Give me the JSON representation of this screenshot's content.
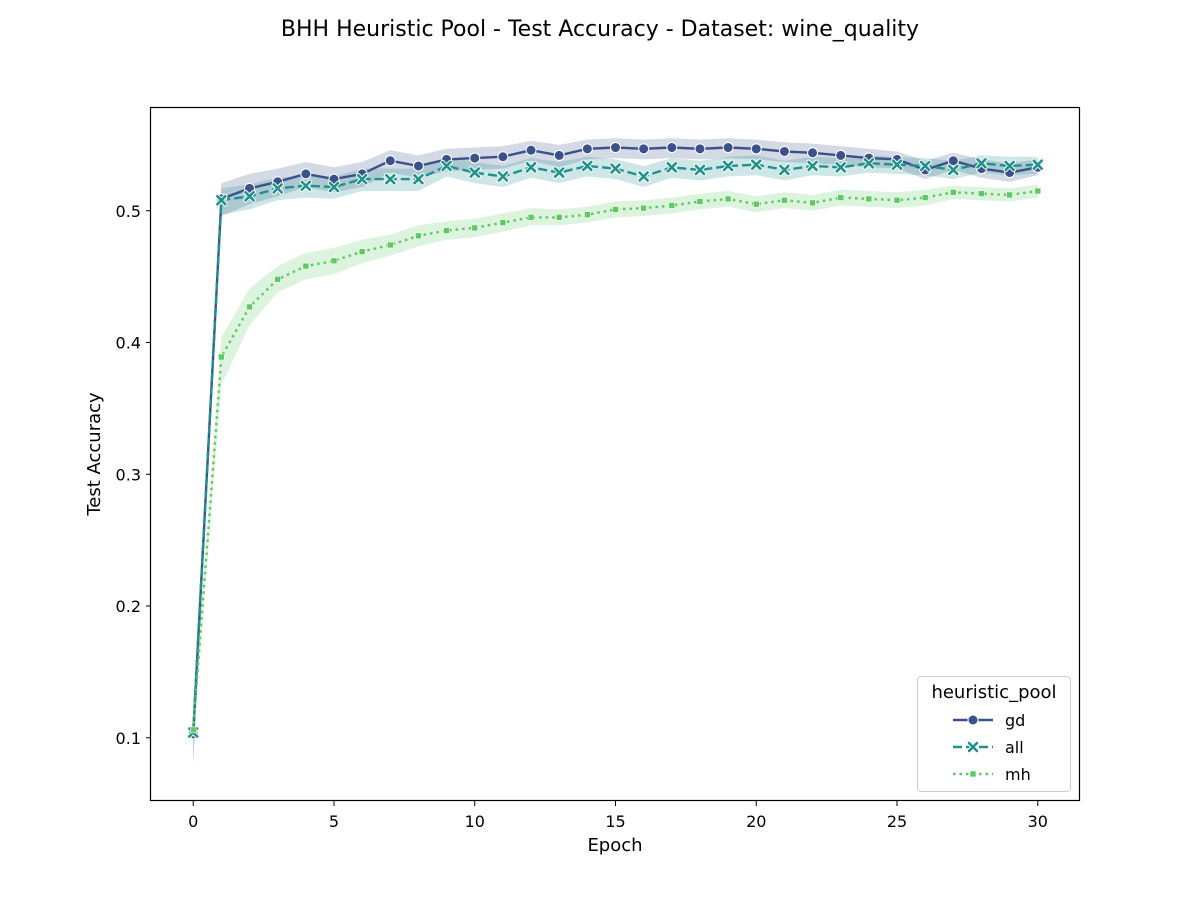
{
  "chart_data": {
    "type": "line",
    "title": "BHH Heuristic Pool - Test Accuracy - Dataset: wine_quality",
    "xlabel": "Epoch",
    "ylabel": "Test Accuracy",
    "xlim": [
      -1.5,
      31.5
    ],
    "ylim": [
      0.052,
      0.578
    ],
    "xticks": [
      0,
      5,
      10,
      15,
      20,
      25,
      30
    ],
    "yticks": [
      0.1,
      0.2,
      0.3,
      0.4,
      0.5
    ],
    "xtick_labels": [
      "0",
      "5",
      "10",
      "15",
      "20",
      "25",
      "30"
    ],
    "ytick_labels": [
      "0.1",
      "0.2",
      "0.3",
      "0.4",
      "0.5"
    ],
    "legend": {
      "title": "heuristic_pool",
      "placement": "lower right"
    },
    "grid": false,
    "x": [
      0,
      1,
      2,
      3,
      4,
      5,
      6,
      7,
      8,
      9,
      10,
      11,
      12,
      13,
      14,
      15,
      16,
      17,
      18,
      19,
      20,
      21,
      22,
      23,
      24,
      25,
      26,
      27,
      28,
      29,
      30
    ],
    "series": [
      {
        "name": "gd",
        "color": "#3b518b",
        "line_style": "solid",
        "marker": "circle",
        "values": [
          0.103,
          0.509,
          0.517,
          0.522,
          0.528,
          0.524,
          0.528,
          0.538,
          0.534,
          0.539,
          0.54,
          0.541,
          0.546,
          0.542,
          0.547,
          0.548,
          0.547,
          0.548,
          0.547,
          0.548,
          0.547,
          0.545,
          0.544,
          0.542,
          0.54,
          0.539,
          0.531,
          0.538,
          0.532,
          0.529,
          0.533
        ],
        "ci_lower": [
          0.082,
          0.496,
          0.505,
          0.511,
          0.518,
          0.514,
          0.518,
          0.529,
          0.525,
          0.53,
          0.531,
          0.532,
          0.538,
          0.533,
          0.539,
          0.54,
          0.539,
          0.54,
          0.539,
          0.54,
          0.539,
          0.537,
          0.536,
          0.535,
          0.533,
          0.532,
          0.524,
          0.531,
          0.525,
          0.522,
          0.527
        ],
        "ci_upper": [
          0.112,
          0.521,
          0.528,
          0.532,
          0.537,
          0.533,
          0.537,
          0.546,
          0.542,
          0.547,
          0.548,
          0.549,
          0.553,
          0.55,
          0.554,
          0.555,
          0.554,
          0.555,
          0.554,
          0.555,
          0.554,
          0.552,
          0.551,
          0.549,
          0.547,
          0.545,
          0.538,
          0.544,
          0.539,
          0.536,
          0.539
        ]
      },
      {
        "name": "all",
        "color": "#21918c",
        "line_style": "dashed",
        "marker": "x",
        "values": [
          0.104,
          0.508,
          0.511,
          0.517,
          0.519,
          0.518,
          0.524,
          0.524,
          0.524,
          0.534,
          0.529,
          0.526,
          0.533,
          0.529,
          0.534,
          0.532,
          0.526,
          0.533,
          0.531,
          0.534,
          0.535,
          0.531,
          0.534,
          0.533,
          0.536,
          0.535,
          0.534,
          0.531,
          0.536,
          0.534,
          0.535
        ],
        "ci_lower": [
          0.078,
          0.497,
          0.501,
          0.508,
          0.51,
          0.509,
          0.515,
          0.515,
          0.515,
          0.526,
          0.521,
          0.518,
          0.525,
          0.521,
          0.526,
          0.524,
          0.518,
          0.525,
          0.523,
          0.526,
          0.527,
          0.523,
          0.527,
          0.526,
          0.529,
          0.528,
          0.527,
          0.524,
          0.529,
          0.527,
          0.528
        ],
        "ci_upper": [
          0.115,
          0.517,
          0.52,
          0.525,
          0.527,
          0.526,
          0.532,
          0.532,
          0.532,
          0.541,
          0.537,
          0.534,
          0.54,
          0.537,
          0.541,
          0.539,
          0.534,
          0.54,
          0.538,
          0.541,
          0.542,
          0.538,
          0.541,
          0.54,
          0.542,
          0.541,
          0.54,
          0.538,
          0.542,
          0.541,
          0.541
        ]
      },
      {
        "name": "mh",
        "color": "#5ec962",
        "line_style": "dotted",
        "marker": "square",
        "values": [
          0.106,
          0.389,
          0.427,
          0.448,
          0.458,
          0.462,
          0.469,
          0.474,
          0.481,
          0.485,
          0.487,
          0.491,
          0.495,
          0.495,
          0.497,
          0.501,
          0.502,
          0.504,
          0.507,
          0.509,
          0.505,
          0.508,
          0.506,
          0.51,
          0.509,
          0.508,
          0.51,
          0.514,
          0.513,
          0.512,
          0.515
        ],
        "ci_lower": [
          0.098,
          0.368,
          0.413,
          0.438,
          0.448,
          0.452,
          0.46,
          0.466,
          0.473,
          0.478,
          0.48,
          0.484,
          0.489,
          0.489,
          0.491,
          0.495,
          0.496,
          0.498,
          0.501,
          0.503,
          0.499,
          0.502,
          0.5,
          0.504,
          0.503,
          0.502,
          0.504,
          0.509,
          0.508,
          0.507,
          0.51
        ],
        "ci_upper": [
          0.111,
          0.404,
          0.441,
          0.458,
          0.468,
          0.472,
          0.478,
          0.482,
          0.489,
          0.492,
          0.494,
          0.498,
          0.502,
          0.501,
          0.503,
          0.507,
          0.508,
          0.51,
          0.513,
          0.515,
          0.511,
          0.514,
          0.512,
          0.516,
          0.515,
          0.514,
          0.516,
          0.519,
          0.518,
          0.517,
          0.52
        ]
      }
    ]
  }
}
